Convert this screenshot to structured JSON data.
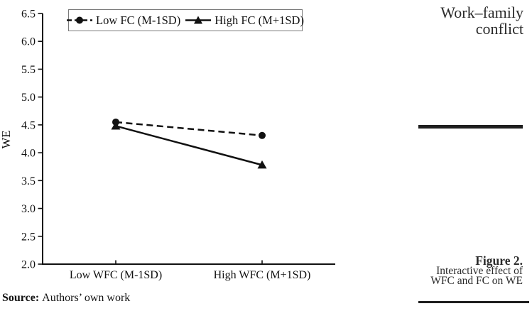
{
  "running_head": {
    "line1": "Work–family",
    "line2": "conflict"
  },
  "figure_caption": {
    "title": "Figure 2.",
    "line1": "Interactive effect of",
    "line2": "WFC and FC on WE"
  },
  "source": {
    "label": "Source:",
    "text": "Authors’ own work"
  },
  "chart_data": {
    "type": "line",
    "categories": [
      "Low WFC (M-1SD)",
      "High WFC (M+1SD)"
    ],
    "series": [
      {
        "name": "Low FC (M-1SD)",
        "values": [
          4.55,
          4.31
        ],
        "line": "dashed",
        "marker": "circle",
        "color": "#111111"
      },
      {
        "name": "High FC (M+1SD)",
        "values": [
          4.48,
          3.78
        ],
        "line": "solid",
        "marker": "triangle",
        "color": "#111111"
      }
    ],
    "title": "",
    "xlabel": "",
    "ylabel": "WE",
    "ylim": [
      2.0,
      6.5
    ],
    "ytick_step": 0.5,
    "grid": false,
    "legend_position": "top"
  }
}
